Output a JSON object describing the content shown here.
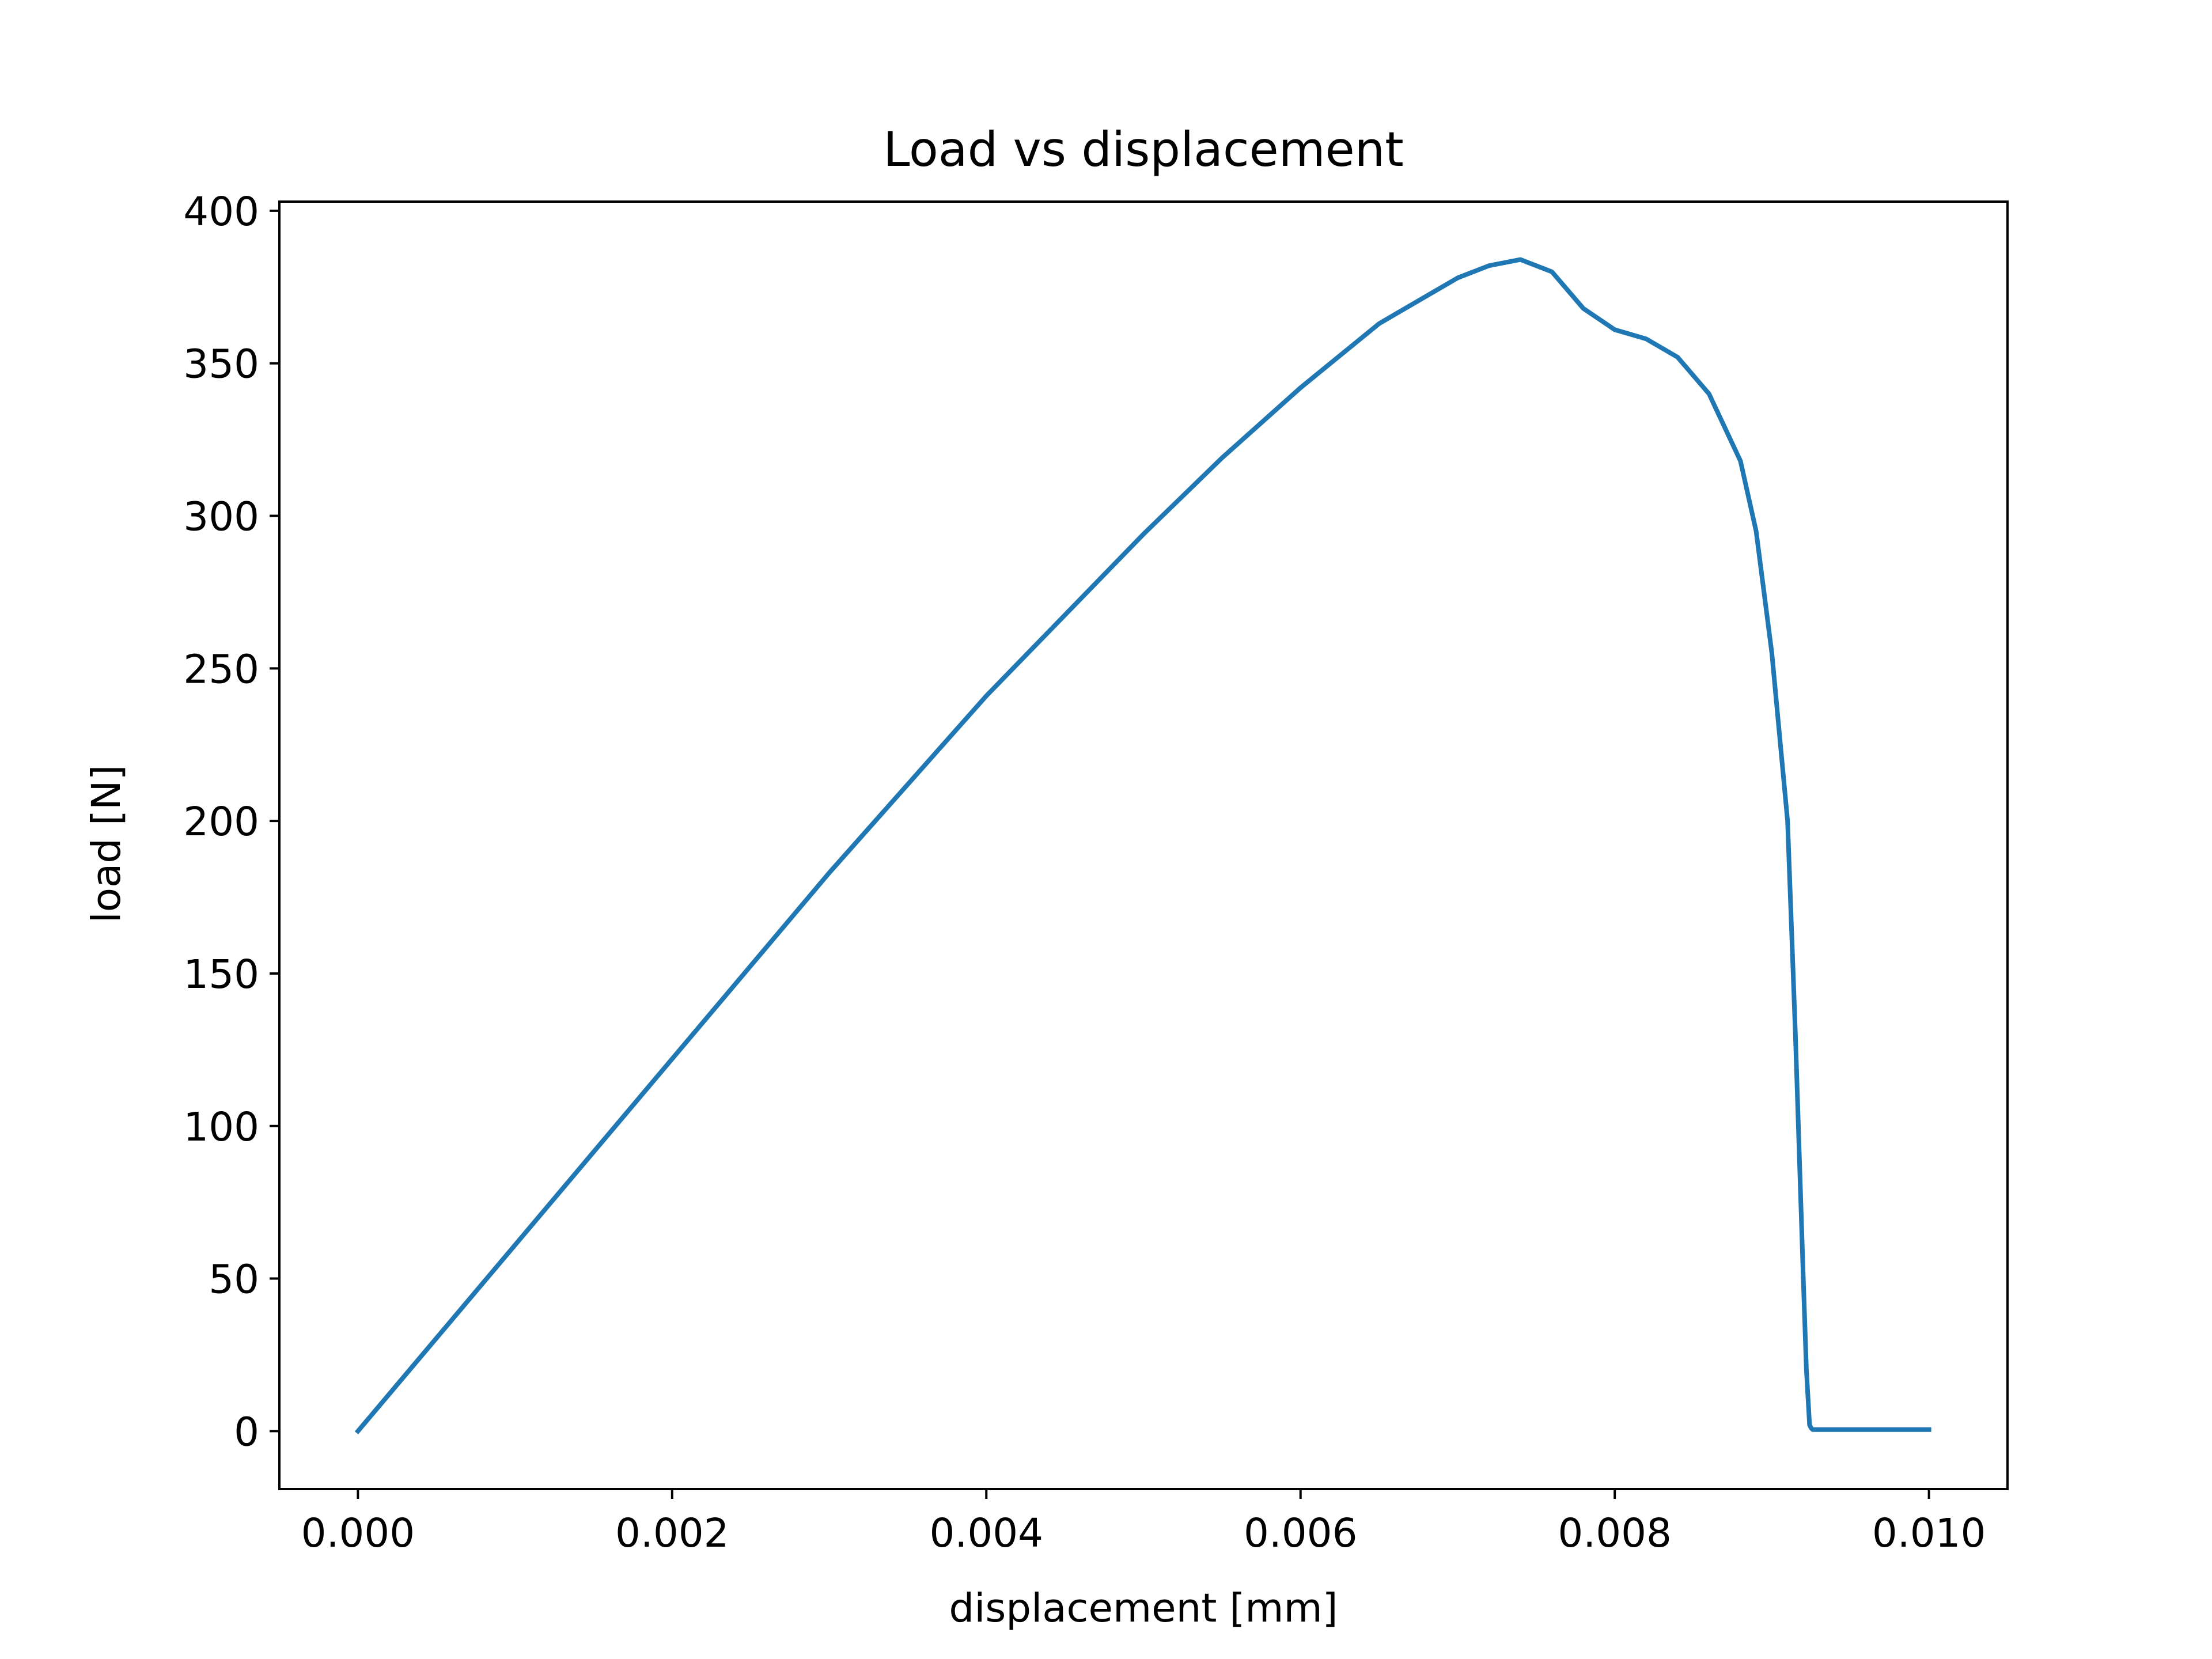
{
  "chart_data": {
    "type": "line",
    "title": "Load vs displacement",
    "xlabel": "displacement [mm]",
    "ylabel": "load [N]",
    "xlim": [
      -0.0005,
      0.0105
    ],
    "ylim": [
      -19,
      403
    ],
    "xticks": [
      0.0,
      0.002,
      0.004,
      0.006,
      0.008,
      0.01
    ],
    "xtick_labels": [
      "0.000",
      "0.002",
      "0.004",
      "0.006",
      "0.008",
      "0.010"
    ],
    "yticks": [
      0,
      50,
      100,
      150,
      200,
      250,
      300,
      350,
      400
    ],
    "ytick_labels": [
      "0",
      "50",
      "100",
      "150",
      "200",
      "250",
      "300",
      "350",
      "400"
    ],
    "grid": false,
    "color": "#1f77b4",
    "series": [
      {
        "name": "load",
        "x": [
          0.0,
          0.001,
          0.002,
          0.003,
          0.004,
          0.005,
          0.0055,
          0.006,
          0.0065,
          0.007,
          0.0072,
          0.0074,
          0.0076,
          0.0078,
          0.008,
          0.0082,
          0.0084,
          0.0086,
          0.0088,
          0.0089,
          0.009,
          0.0091,
          0.00915,
          0.0092,
          0.00922,
          0.00924,
          0.00925,
          0.00926,
          0.0093,
          0.0095,
          0.01
        ],
        "y": [
          0,
          61,
          122,
          183,
          241,
          294,
          319,
          342,
          363,
          378,
          382,
          384,
          380,
          368,
          361,
          358,
          352,
          340,
          318,
          295,
          255,
          200,
          130,
          50,
          20,
          2,
          1,
          0.5,
          0.5,
          0.5,
          0.5
        ]
      }
    ]
  }
}
